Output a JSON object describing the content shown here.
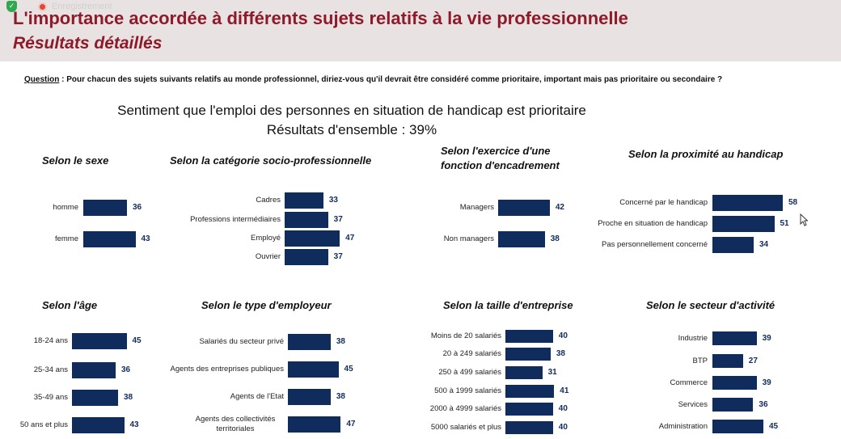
{
  "recording": {
    "label": "Enregistrement"
  },
  "header": {
    "title": "L'importance accordée à différents sujets relatifs à la vie professionnelle",
    "subtitle": "Résultats détaillés"
  },
  "question": {
    "label": "Question",
    "text": " :  Pour chacun des sujets suivants relatifs au monde professionnel, diriez-vous qu'il devrait être considéré comme prioritaire, important mais pas prioritaire ou secondaire ?"
  },
  "sentiment": {
    "line1": "Sentiment que l'emploi des personnes en situation de handicap est prioritaire",
    "line2": "Résultats d'ensemble : 39%"
  },
  "chart_data": [
    {
      "id": "sexe",
      "type": "bar",
      "title": "Selon le sexe",
      "categories": [
        "homme",
        "femme"
      ],
      "values": [
        36,
        43
      ]
    },
    {
      "id": "csp",
      "type": "bar",
      "title": "Selon la catégorie socio-professionnelle",
      "categories": [
        "Cadres",
        "Professions intermédiaires",
        "Employé",
        "Ouvrier"
      ],
      "values": [
        33,
        37,
        47,
        37
      ]
    },
    {
      "id": "encadrement",
      "type": "bar",
      "title": "Selon l'exercice d'une fonction d'encadrement",
      "categories": [
        "Managers",
        "Non managers"
      ],
      "values": [
        42,
        38
      ]
    },
    {
      "id": "proximite",
      "type": "bar",
      "title": "Selon la proximité au handicap",
      "categories": [
        "Concerné par le handicap",
        "Proche en situation de handicap",
        "Pas personnellement concerné"
      ],
      "values": [
        58,
        51,
        34
      ]
    },
    {
      "id": "age",
      "type": "bar",
      "title": "Selon l'âge",
      "categories": [
        "18-24 ans",
        "25-34 ans",
        "35-49 ans",
        "50 ans et plus"
      ],
      "values": [
        45,
        36,
        38,
        43
      ]
    },
    {
      "id": "employeur",
      "type": "bar",
      "title": "Selon le type d'employeur",
      "categories": [
        "Salariés du secteur privé",
        "Agents des entreprises publiques",
        "Agents de l'Etat",
        "Agents des collectivités territoriales"
      ],
      "values": [
        38,
        45,
        38,
        47
      ]
    },
    {
      "id": "taille",
      "type": "bar",
      "title": "Selon la taille d'entreprise",
      "categories": [
        "Moins de 20 salariés",
        "20 à 249 salariés",
        "250 à 499 salariés",
        "500 à 1999 salariés",
        "2000 à 4999 salariés",
        "5000 salariés et plus"
      ],
      "values": [
        40,
        38,
        31,
        41,
        40,
        40
      ]
    },
    {
      "id": "secteur",
      "type": "bar",
      "title": "Selon le secteur d'activité",
      "categories": [
        "Industrie",
        "BTP",
        "Commerce",
        "Services",
        "Administration"
      ],
      "values": [
        39,
        27,
        39,
        36,
        45
      ]
    }
  ]
}
